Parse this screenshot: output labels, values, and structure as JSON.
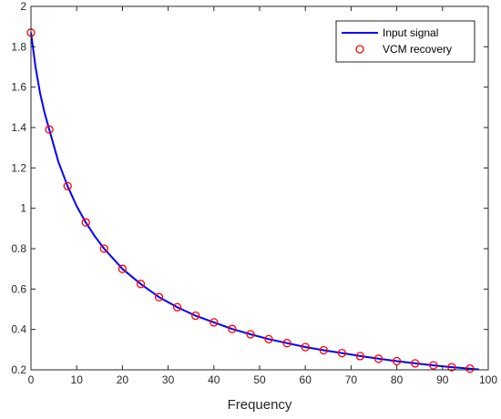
{
  "chart_data": {
    "type": "line",
    "xlabel": "Frequency",
    "ylabel": "",
    "title": "",
    "xlim": [
      0,
      100
    ],
    "ylim": [
      0.2,
      2
    ],
    "xticks": [
      0,
      10,
      20,
      30,
      40,
      50,
      60,
      70,
      80,
      90,
      100
    ],
    "yticks": [
      0.2,
      0.4,
      0.6,
      0.8,
      1,
      1.2,
      1.4,
      1.6,
      1.8,
      2
    ],
    "grid": false,
    "legend_position": "top-right",
    "series": [
      {
        "name": "Input signal",
        "style": "line",
        "color": "#0000ff",
        "x": [
          0,
          1,
          2,
          3,
          4,
          6,
          8,
          10,
          12,
          14,
          16,
          18,
          20,
          24,
          28,
          32,
          36,
          40,
          44,
          48,
          52,
          56,
          60,
          64,
          68,
          72,
          76,
          80,
          84,
          88,
          92,
          96,
          98
        ],
        "y": [
          1.87,
          1.7,
          1.57,
          1.47,
          1.39,
          1.23,
          1.11,
          1.01,
          0.93,
          0.86,
          0.8,
          0.75,
          0.7,
          0.625,
          0.56,
          0.51,
          0.468,
          0.435,
          0.402,
          0.376,
          0.352,
          0.332,
          0.313,
          0.297,
          0.283,
          0.268,
          0.255,
          0.243,
          0.232,
          0.222,
          0.213,
          0.206,
          0.202
        ]
      },
      {
        "name": "VCM recovery",
        "style": "markers",
        "marker": "circle",
        "color": "#ff0000",
        "x": [
          0,
          4,
          8,
          12,
          16,
          20,
          24,
          28,
          32,
          36,
          40,
          44,
          48,
          52,
          56,
          60,
          64,
          68,
          72,
          76,
          80,
          84,
          88,
          92,
          96
        ],
        "y": [
          1.87,
          1.39,
          1.11,
          0.93,
          0.8,
          0.7,
          0.625,
          0.56,
          0.51,
          0.468,
          0.435,
          0.402,
          0.376,
          0.352,
          0.332,
          0.313,
          0.297,
          0.283,
          0.268,
          0.255,
          0.243,
          0.232,
          0.222,
          0.213,
          0.206
        ]
      }
    ]
  }
}
